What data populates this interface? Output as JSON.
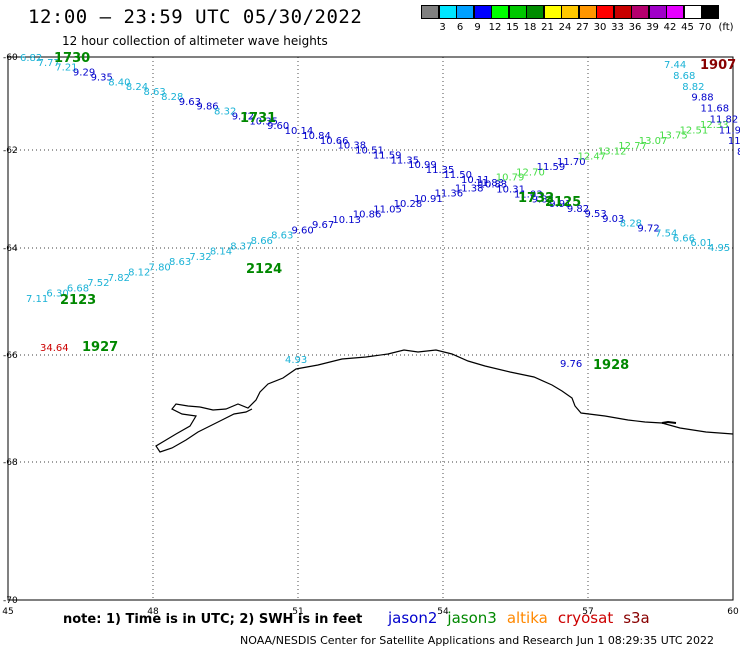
{
  "header": {
    "title": "12:00 – 23:59 UTC 05/30/2022",
    "subtitle": "12 hour collection of altimeter wave heights"
  },
  "colorbar": {
    "unit": "(ft)",
    "ticks": [
      "3",
      "6",
      "9",
      "12",
      "15",
      "18",
      "21",
      "24",
      "27",
      "30",
      "33",
      "36",
      "39",
      "42",
      "45",
      "70"
    ],
    "colors": [
      "#808080",
      "#00e6ff",
      "#00a0ff",
      "#0000ff",
      "#00ff00",
      "#00c800",
      "#008c00",
      "#ffff00",
      "#ffc800",
      "#ff9600",
      "#ff0000",
      "#c80000",
      "#b4006e",
      "#a000c8",
      "#e600ff",
      "#ffffff",
      "#000000"
    ]
  },
  "axes": {
    "lon_ticks": [
      "45",
      "48",
      "51",
      "54",
      "57",
      "60"
    ],
    "lat_ticks": [
      "-60",
      "-62",
      "-64",
      "-66",
      "-68",
      "-70"
    ]
  },
  "satellite_colors": {
    "jason2": "#0000cc",
    "jason3": "#008800",
    "altika": "#ff8800",
    "cryosat": "#cc0000",
    "s3a": "#880000",
    "s3b": "#1ab2d6",
    "green_light": "#44dd44"
  },
  "track1": [
    {
      "v": "6.82",
      "c": "s3b"
    },
    {
      "v": "7.77",
      "c": "s3b"
    },
    {
      "v": "7.21",
      "c": "s3b"
    },
    {
      "v": "9.29",
      "c": "jason2"
    },
    {
      "v": "9.35",
      "c": "jason2"
    },
    {
      "v": "8.40",
      "c": "s3b"
    },
    {
      "v": "8.24",
      "c": "s3b"
    },
    {
      "v": "8.63",
      "c": "s3b"
    },
    {
      "v": "8.28",
      "c": "s3b"
    },
    {
      "v": "9.63",
      "c": "jason2"
    },
    {
      "v": "9.86",
      "c": "jason2"
    },
    {
      "v": "8.32",
      "c": "s3b"
    },
    {
      "v": "9.72",
      "c": "jason2"
    },
    {
      "v": "10.35",
      "c": "jason2"
    },
    {
      "v": "9.60",
      "c": "jason2"
    },
    {
      "v": "10.14",
      "c": "jason2"
    },
    {
      "v": "10.84",
      "c": "jason2"
    },
    {
      "v": "10.66",
      "c": "jason2"
    },
    {
      "v": "10.38",
      "c": "jason2"
    },
    {
      "v": "10.51",
      "c": "jason2"
    },
    {
      "v": "11.59",
      "c": "jason2"
    },
    {
      "v": "11.35",
      "c": "jason2"
    },
    {
      "v": "10.99",
      "c": "jason2"
    },
    {
      "v": "11.35",
      "c": "jason2"
    },
    {
      "v": "11.50",
      "c": "jason2"
    },
    {
      "v": "10.11",
      "c": "jason2"
    },
    {
      "v": "10.83",
      "c": "jason2"
    },
    {
      "v": "10.31",
      "c": "jason2"
    },
    {
      "v": "11.03",
      "c": "jason2"
    },
    {
      "v": "9.83",
      "c": "jason2"
    },
    {
      "v": "9.91",
      "c": "jason2"
    },
    {
      "v": "9.82",
      "c": "jason2"
    },
    {
      "v": "9.53",
      "c": "jason2"
    },
    {
      "v": "9.03",
      "c": "jason2"
    },
    {
      "v": "8.28",
      "c": "s3b"
    },
    {
      "v": "9.72",
      "c": "jason2"
    },
    {
      "v": "7.54",
      "c": "s3b"
    },
    {
      "v": "6.66",
      "c": "s3b"
    },
    {
      "v": "6.01",
      "c": "s3b"
    },
    {
      "v": "4.95",
      "c": "s3b"
    }
  ],
  "track2": [
    {
      "v": "7.11",
      "c": "s3b"
    },
    {
      "v": "6.30",
      "c": "s3b"
    },
    {
      "v": "6.68",
      "c": "s3b"
    },
    {
      "v": "7.52",
      "c": "s3b"
    },
    {
      "v": "7.82",
      "c": "s3b"
    },
    {
      "v": "8.12",
      "c": "s3b"
    },
    {
      "v": "7.80",
      "c": "s3b"
    },
    {
      "v": "8.63",
      "c": "s3b"
    },
    {
      "v": "7.32",
      "c": "s3b"
    },
    {
      "v": "8.14",
      "c": "s3b"
    },
    {
      "v": "8.37",
      "c": "s3b"
    },
    {
      "v": "8.66",
      "c": "s3b"
    },
    {
      "v": "8.63",
      "c": "s3b"
    },
    {
      "v": "9.60",
      "c": "jason2"
    },
    {
      "v": "9.67",
      "c": "jason2"
    },
    {
      "v": "10.13",
      "c": "jason2"
    },
    {
      "v": "10.86",
      "c": "jason2"
    },
    {
      "v": "11.05",
      "c": "jason2"
    },
    {
      "v": "10.28",
      "c": "jason2"
    },
    {
      "v": "10.91",
      "c": "jason2"
    },
    {
      "v": "11.36",
      "c": "jason2"
    },
    {
      "v": "11.38",
      "c": "jason2"
    },
    {
      "v": "11.83",
      "c": "jason2"
    },
    {
      "v": "10.79",
      "c": "green_light"
    },
    {
      "v": "12.70",
      "c": "green_light"
    },
    {
      "v": "11.59",
      "c": "jason2"
    },
    {
      "v": "11.70",
      "c": "jason2"
    },
    {
      "v": "12.47",
      "c": "green_light"
    },
    {
      "v": "13.12",
      "c": "green_light"
    },
    {
      "v": "12.77",
      "c": "green_light"
    },
    {
      "v": "13.07",
      "c": "green_light"
    },
    {
      "v": "13.75",
      "c": "green_light"
    },
    {
      "v": "12.51",
      "c": "green_light"
    },
    {
      "v": "12.33",
      "c": "green_light"
    }
  ],
  "track3": [
    {
      "v": "7.44",
      "c": "s3b"
    },
    {
      "v": "8.68",
      "c": "s3b"
    },
    {
      "v": "8.82",
      "c": "s3b"
    },
    {
      "v": "9.88",
      "c": "jason2"
    },
    {
      "v": "11.68",
      "c": "jason2"
    },
    {
      "v": "11.82",
      "c": "jason2"
    },
    {
      "v": "11.93",
      "c": "jason2"
    },
    {
      "v": "11.30",
      "c": "jason2"
    },
    {
      "v": "8.9",
      "c": "jason2"
    }
  ],
  "misc_values": [
    {
      "v": "34.64",
      "c": "cryosat"
    },
    {
      "v": "4.93",
      "c": "s3b"
    },
    {
      "v": "9.76",
      "c": "jason2"
    }
  ],
  "time_labels": [
    {
      "v": "1730",
      "c": "jason3"
    },
    {
      "v": "1731",
      "c": "jason3"
    },
    {
      "v": "1732",
      "c": "jason3"
    },
    {
      "v": "2125",
      "c": "jason3"
    },
    {
      "v": "2124",
      "c": "jason3"
    },
    {
      "v": "2123",
      "c": "jason3"
    },
    {
      "v": "1927",
      "c": "jason3"
    },
    {
      "v": "1928",
      "c": "jason3"
    },
    {
      "v": "1907",
      "c": "s3a"
    }
  ],
  "footer": {
    "note": "note: 1) Time is in UTC; 2) SWH is in feet",
    "legend": [
      {
        "name": "jason2",
        "c": "jason2"
      },
      {
        "name": "jason3",
        "c": "jason3"
      },
      {
        "name": "altika",
        "c": "altika"
      },
      {
        "name": "cryosat",
        "c": "cryosat"
      },
      {
        "name": "s3a",
        "c": "s3a"
      }
    ],
    "credit": "NOAA/NESDIS Center for Satellite Applications and Research    Jun  1 08:29:35 UTC 2022"
  }
}
